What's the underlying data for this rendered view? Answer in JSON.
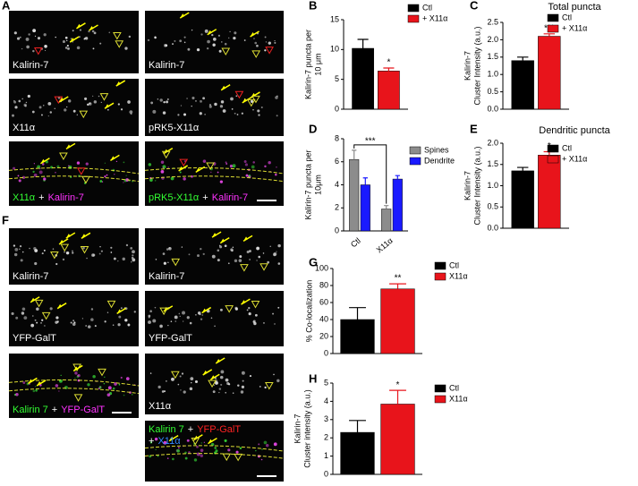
{
  "panels": {
    "A": {
      "label": "A",
      "images": [
        {
          "caption": [
            "Kalirin-7"
          ]
        },
        {
          "caption": [
            "Kalirin-7"
          ]
        },
        {
          "caption": [
            "X11α"
          ]
        },
        {
          "caption": [
            "pRK5-X11α"
          ]
        },
        {
          "caption": [
            "X11α",
            "+",
            "Kalirin-7"
          ]
        },
        {
          "caption": [
            "pRK5-X11α",
            "+",
            "Kalirin-7"
          ]
        }
      ]
    },
    "F": {
      "label": "F",
      "images": [
        {
          "caption": [
            "Kalirin-7"
          ]
        },
        {
          "caption": [
            "Kalirin-7"
          ]
        },
        {
          "caption": [
            "YFP-GalT"
          ]
        },
        {
          "caption": [
            "YFP-GalT"
          ]
        },
        {
          "caption": [
            "Kalirin 7",
            "+",
            "YFP-GalT"
          ]
        },
        {
          "caption": [
            "X11α"
          ]
        },
        {
          "caption": [
            "Kalirin 7",
            "+",
            "YFP-GalT",
            "+",
            "X11α"
          ]
        }
      ]
    }
  },
  "chart_data": [
    {
      "type": "bar",
      "panel_label": "B",
      "y_label": [
        "Kalirin-7 puncta per",
        "10 μm"
      ],
      "series": [
        {
          "name": "Ctl",
          "color": "#000000",
          "values": [
            10.2
          ],
          "errors": [
            1.5
          ]
        },
        {
          "name": "+ X11α",
          "color": "#e8141b",
          "values": [
            6.4
          ],
          "errors": [
            0.5
          ]
        }
      ],
      "ylim": [
        0,
        15
      ],
      "yticks": [
        0,
        5,
        10,
        15
      ],
      "annotation": "*"
    },
    {
      "type": "bar",
      "panel_label": "C",
      "title": "Total puncta",
      "y_label": [
        "Kalirin-7",
        "Cluster Intensity (a.u.)"
      ],
      "series": [
        {
          "name": "Ctl",
          "color": "#000000",
          "values": [
            1.4
          ],
          "errors": [
            0.1
          ]
        },
        {
          "name": "+ X11α",
          "color": "#e8141b",
          "values": [
            2.1
          ],
          "errors": [
            0.07
          ]
        }
      ],
      "ylim": [
        0,
        2.5
      ],
      "yticks": [
        {
          "value": 0,
          "label": "0.0"
        },
        0.5,
        {
          "value": 1,
          "label": "1.0"
        },
        1.5,
        {
          "value": 2,
          "label": "2.0"
        },
        2.5
      ],
      "annotation": "***"
    },
    {
      "type": "bar",
      "panel_label": "D",
      "y_label": [
        "Kalirin-7 puncta per",
        "10μm"
      ],
      "categories": [
        "Ctl",
        "X11α"
      ],
      "series": [
        {
          "name": "Spines",
          "color": "#8c8c8c",
          "values": [
            6.2,
            1.9
          ],
          "errors": [
            0.8,
            0.3
          ]
        },
        {
          "name": "Dendrite",
          "color": "#1a1aff",
          "values": [
            4.0,
            4.5
          ],
          "errors": [
            0.6,
            0.3
          ]
        }
      ],
      "ylim": [
        0,
        8
      ],
      "yticks": [
        0,
        2,
        4,
        6,
        8
      ],
      "annotation": "***"
    },
    {
      "type": "bar",
      "panel_label": "E",
      "title": "Dendritic puncta",
      "y_label": [
        "Kalirin-7",
        "Cluster Intensity (a.u.)"
      ],
      "series": [
        {
          "name": "Ctl",
          "color": "#000000",
          "values": [
            1.35
          ],
          "errors": [
            0.08
          ]
        },
        {
          "name": "+ X11α",
          "color": "#e8141b",
          "values": [
            1.72
          ],
          "errors": [
            0.08
          ]
        }
      ],
      "ylim": [
        0,
        2
      ],
      "yticks": [
        {
          "value": 0,
          "label": "0.0"
        },
        0.5,
        {
          "value": 1,
          "label": "1.0"
        },
        1.5,
        {
          "value": 2,
          "label": "2.0"
        }
      ],
      "annotation": "*"
    },
    {
      "type": "bar",
      "panel_label": "G",
      "y_label": [
        "% Co-localization"
      ],
      "series": [
        {
          "name": "Ctl",
          "color": "#000000",
          "values": [
            40
          ],
          "errors": [
            14
          ]
        },
        {
          "name": "X11α",
          "color": "#e8141b",
          "values": [
            76
          ],
          "errors": [
            6
          ]
        }
      ],
      "ylim": [
        0,
        100
      ],
      "yticks": [
        0,
        20,
        40,
        60,
        80,
        100
      ],
      "annotation": "**"
    },
    {
      "type": "bar",
      "panel_label": "H",
      "y_label": [
        "Kalirin-7",
        "Cluster intensity (a.u.)"
      ],
      "series": [
        {
          "name": "Ctl",
          "color": "#000000",
          "values": [
            2.3
          ],
          "errors": [
            0.65
          ]
        },
        {
          "name": "X11α",
          "color": "#e8141b",
          "values": [
            3.85
          ],
          "errors": [
            0.75
          ]
        }
      ],
      "ylim": [
        0,
        5
      ],
      "yticks": [
        0,
        1,
        2,
        3,
        4,
        5
      ],
      "annotation": "*"
    }
  ]
}
